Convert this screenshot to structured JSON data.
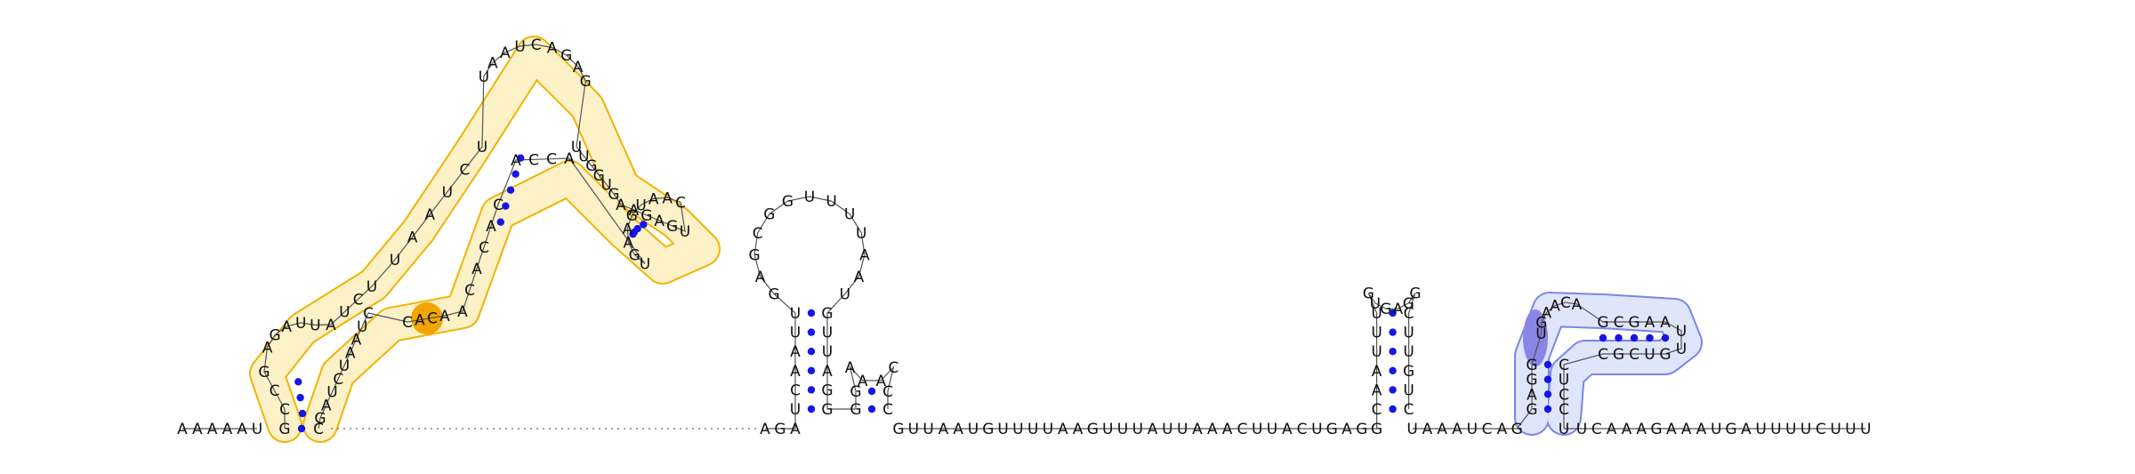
{
  "colors": {
    "nucleotide": "#111111",
    "base_pair_dot": "#1515e8",
    "domain_outline_orange": "#f0b400",
    "domain_fill_orange": "#fdf1c8",
    "domain_highlight_orange": "#f2a500",
    "domain_outline_blue": "#7a86e6",
    "domain_fill_blue": "#dfe5fb",
    "domain_highlight_blue": "#8a86e6"
  },
  "segments": {
    "left_tail": "AAAAAU",
    "stem1_5": "G",
    "hp1_5": "CCGAGAUU",
    "multiloop_5a": "AUCU",
    "stem2_5": "UAAUCU",
    "big_loop": "UAAUCAGAG",
    "stem2_3": "UUGGUG",
    "right_arm": "AAGAGUCAAUGAAGU",
    "stem2_inner": "ACCA",
    "multiloop_3": "CACACA",
    "hp1_3": "CUAAUCUAG",
    "hairpin2_stem5": "UCAAUU",
    "hairpin2_loop": "GAGCGGUUUUAAU",
    "hairpin2_stem3": "GUUAGG",
    "hairpin3_5": "GG",
    "hairpin3_loop": "AAAC",
    "hairpin3_3": "CC",
    "linker1": "AGA",
    "linker2": "GUUAAUGUUUUAAGUUUAUUAAACUUACUGAGG",
    "hairpin4_stem5": "CAAUUUC",
    "hairpin4_loop": "GUGAGG",
    "hairpin4_stem3": "CUUGUC",
    "linker3": "UAAAUCAG",
    "pk_stem5": "GAGG",
    "pk_loop_left": "UGAACA",
    "pk_stem_b5": "GCGAA",
    "pk_loop_right": "UU",
    "pk_stem_b3": "GUCGC",
    "pk_stem3": "CUCC",
    "right_tail": "UCAAAGAAAUGAUUUUCUUU"
  }
}
